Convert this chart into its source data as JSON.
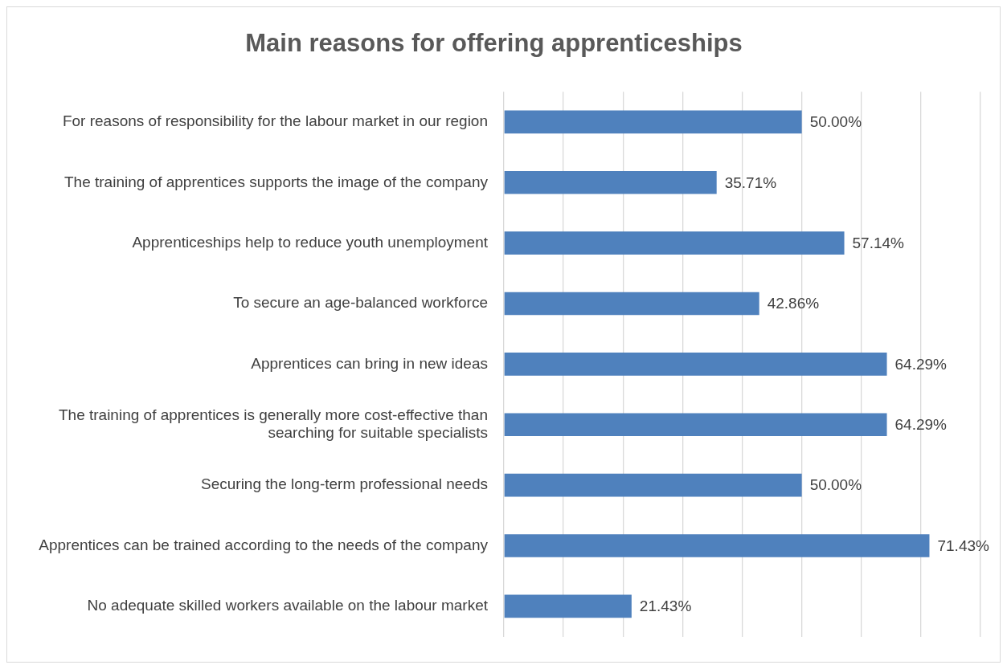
{
  "chart_data": {
    "type": "bar",
    "orientation": "horizontal",
    "title": "Main reasons for offering apprenticeships",
    "categories": [
      "For reasons of responsibility for the labour market in our region",
      "The training of apprentices supports the image of the company",
      "Apprenticeships help to reduce youth unemployment",
      "To secure an age-balanced workforce",
      "Apprentices can bring in new ideas",
      "The training of apprentices is generally more cost-effective than searching for suitable specialists",
      "Securing the long-term professional needs",
      "Apprentices can be trained according to the needs of the company",
      "No adequate skilled workers available on the labour market"
    ],
    "values": [
      50.0,
      35.71,
      57.14,
      42.86,
      64.29,
      64.29,
      50.0,
      71.43,
      21.43
    ],
    "value_labels": [
      "50.00%",
      "35.71%",
      "57.14%",
      "42.86%",
      "64.29%",
      "64.29%",
      "50.00%",
      "71.43%",
      "21.43%"
    ],
    "color": "#4f81bd",
    "xlim": [
      0,
      80
    ],
    "xticks": [
      {
        "value": 0,
        "label": null
      },
      {
        "value": 10,
        "label": null
      },
      {
        "value": 20,
        "label": null
      },
      {
        "value": 30,
        "label": null
      },
      {
        "value": 40,
        "label": null
      },
      {
        "value": 50,
        "label": null
      },
      {
        "value": 60,
        "label": null
      },
      {
        "value": 70,
        "label": null
      },
      {
        "value": 80,
        "label": null
      }
    ],
    "grid": "x",
    "tick_labels": "y",
    "legend": false
  }
}
